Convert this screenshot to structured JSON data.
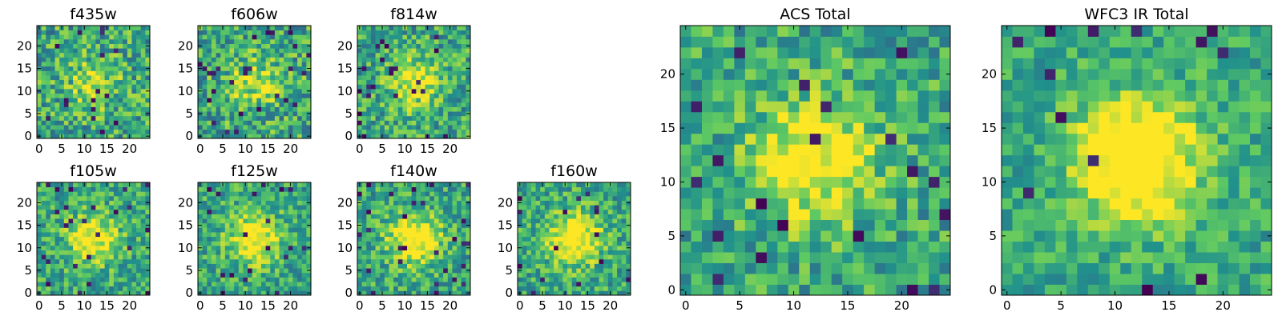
{
  "colormap": [
    "#440154",
    "#3b528b",
    "#21918c",
    "#5ec962",
    "#fde725"
  ],
  "chart_data": [
    {
      "type": "heatmap",
      "title": "f435w",
      "grid": false,
      "xlim": [
        -0.5,
        24.5
      ],
      "ylim": [
        -0.5,
        24.5
      ],
      "xticks": [
        0,
        5,
        10,
        15,
        20
      ],
      "yticks": [
        0,
        5,
        10,
        15,
        20
      ],
      "noise": 0.55,
      "signal": 0.25,
      "darkFrac": 0.03,
      "seed": 11
    },
    {
      "type": "heatmap",
      "title": "f606w",
      "grid": false,
      "xlim": [
        -0.5,
        24.5
      ],
      "ylim": [
        -0.5,
        24.5
      ],
      "xticks": [
        0,
        5,
        10,
        15,
        20
      ],
      "yticks": [
        0,
        5,
        10,
        15,
        20
      ],
      "noise": 0.55,
      "signal": 0.3,
      "darkFrac": 0.04,
      "seed": 23
    },
    {
      "type": "heatmap",
      "title": "f814w",
      "grid": false,
      "xlim": [
        -0.5,
        24.5
      ],
      "ylim": [
        -0.5,
        24.5
      ],
      "xticks": [
        0,
        5,
        10,
        15,
        20
      ],
      "yticks": [
        0,
        5,
        10,
        15,
        20
      ],
      "noise": 0.5,
      "signal": 0.4,
      "darkFrac": 0.04,
      "seed": 37
    },
    {
      "type": "heatmap",
      "title": "f105w",
      "grid": false,
      "xlim": [
        -0.5,
        24.5
      ],
      "ylim": [
        -0.5,
        24.5
      ],
      "xticks": [
        0,
        5,
        10,
        15,
        20
      ],
      "yticks": [
        0,
        5,
        10,
        15,
        20
      ],
      "noise": 0.45,
      "signal": 0.45,
      "darkFrac": 0.05,
      "seed": 41
    },
    {
      "type": "heatmap",
      "title": "f125w",
      "grid": false,
      "xlim": [
        -0.5,
        24.5
      ],
      "ylim": [
        -0.5,
        24.5
      ],
      "xticks": [
        0,
        5,
        10,
        15,
        20
      ],
      "yticks": [
        0,
        5,
        10,
        15,
        20
      ],
      "noise": 0.45,
      "signal": 0.5,
      "darkFrac": 0.04,
      "seed": 53
    },
    {
      "type": "heatmap",
      "title": "f140w",
      "grid": false,
      "xlim": [
        -0.5,
        24.5
      ],
      "ylim": [
        -0.5,
        24.5
      ],
      "xticks": [
        0,
        5,
        10,
        15,
        20
      ],
      "yticks": [
        0,
        5,
        10,
        15,
        20
      ],
      "noise": 0.45,
      "signal": 0.55,
      "darkFrac": 0.04,
      "seed": 67
    },
    {
      "type": "heatmap",
      "title": "f160w",
      "grid": false,
      "xlim": [
        -0.5,
        24.5
      ],
      "ylim": [
        -0.5,
        24.5
      ],
      "xticks": [
        0,
        5,
        10,
        15,
        20
      ],
      "yticks": [
        0,
        5,
        10,
        15,
        20
      ],
      "noise": 0.45,
      "signal": 0.55,
      "darkFrac": 0.03,
      "seed": 79
    },
    {
      "type": "heatmap",
      "title": "ACS Total",
      "grid": false,
      "xlim": [
        -0.5,
        24.5
      ],
      "ylim": [
        -0.5,
        24.5
      ],
      "xticks": [
        0,
        5,
        10,
        15,
        20
      ],
      "yticks": [
        0,
        5,
        10,
        15,
        20
      ],
      "noise": 0.45,
      "signal": 0.5,
      "darkFrac": 0.035,
      "seed": 83
    },
    {
      "type": "heatmap",
      "title": "WFC3 IR Total",
      "grid": false,
      "xlim": [
        -0.5,
        24.5
      ],
      "ylim": [
        -0.5,
        24.5
      ],
      "xticks": [
        0,
        5,
        10,
        15,
        20
      ],
      "yticks": [
        0,
        5,
        10,
        15,
        20
      ],
      "noise": 0.35,
      "signal": 0.7,
      "darkFrac": 0.025,
      "seed": 97
    }
  ]
}
